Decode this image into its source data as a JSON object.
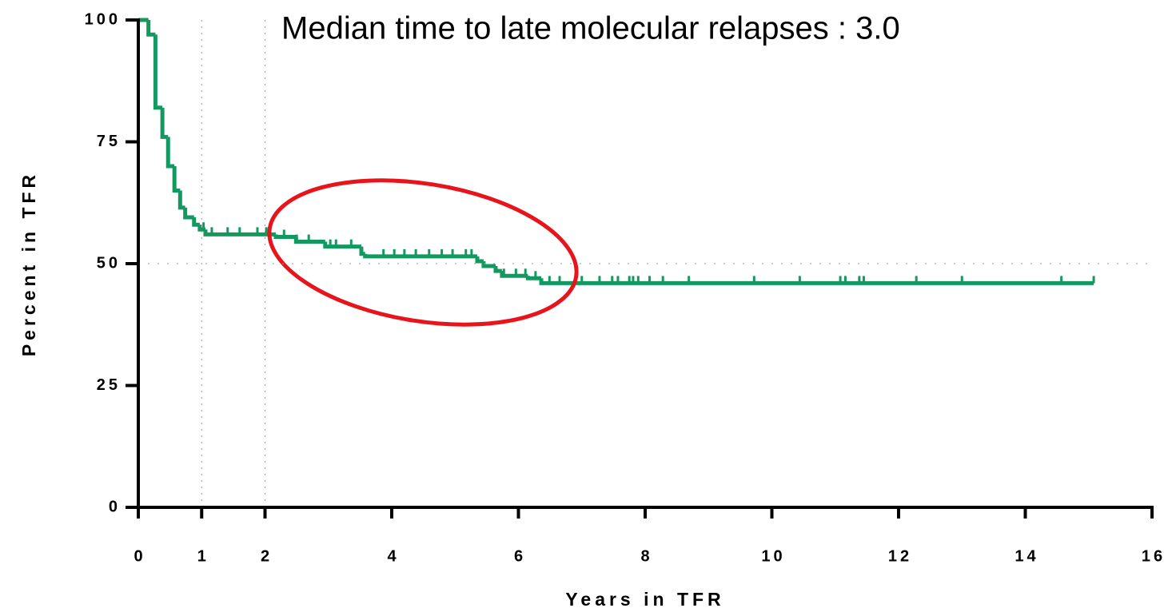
{
  "chart_data": {
    "type": "step",
    "annotation": "Median time to late molecular relapses : 3.0",
    "x_label": "Years in TFR",
    "y_label": "Percent in TFR",
    "xlim": [
      0,
      16
    ],
    "ylim": [
      0,
      100
    ],
    "xticks": [
      0,
      1,
      2,
      4,
      6,
      8,
      10,
      12,
      14,
      16
    ],
    "yticks": [
      0,
      25,
      50,
      75,
      100
    ],
    "reference_lines": {
      "x": [
        1,
        2
      ],
      "y": [
        50
      ]
    },
    "color": "#13995f",
    "x": [
      0,
      0.16,
      0.27,
      0.38,
      0.47,
      0.57,
      0.66,
      0.74,
      0.88,
      0.97,
      1.06,
      2.17,
      2.49,
      2.95,
      3.52,
      3.58,
      5.35,
      5.45,
      5.64,
      5.74,
      6.15,
      6.36,
      15.08
    ],
    "values": [
      100,
      97,
      82,
      76,
      70,
      65,
      61.5,
      59.5,
      58,
      57,
      56,
      55.5,
      54.5,
      53.5,
      52,
      51.5,
      50.5,
      49.5,
      48.5,
      47.5,
      47,
      46,
      46
    ],
    "censored": {
      "x": [
        1.03,
        1.16,
        1.41,
        1.6,
        1.88,
        2.02,
        2.3,
        2.5,
        2.69,
        3.03,
        3.12,
        3.36,
        3.87,
        4.04,
        4.2,
        4.38,
        4.59,
        4.79,
        4.96,
        5.17,
        5.26,
        5.77,
        5.96,
        6.11,
        6.27,
        6.49,
        6.65,
        7.0,
        7.28,
        7.48,
        7.57,
        7.75,
        7.81,
        7.89,
        8.07,
        8.28,
        8.69,
        9.72,
        10.44,
        11.08,
        11.16,
        11.38,
        11.45,
        12.28,
        13.0,
        14.57,
        15.08
      ],
      "values": [
        57,
        56,
        56,
        56,
        56,
        56,
        55.5,
        54.5,
        54.5,
        53.5,
        53.5,
        53.5,
        51.5,
        51.5,
        51.5,
        51.5,
        51.5,
        51.5,
        51.5,
        51.5,
        51.5,
        47.5,
        47.5,
        47.5,
        47,
        46,
        46,
        46,
        46,
        46,
        46,
        46,
        46,
        46,
        46,
        46,
        46,
        46,
        46,
        46,
        46,
        46,
        46,
        46,
        46,
        46,
        46
      ]
    }
  }
}
